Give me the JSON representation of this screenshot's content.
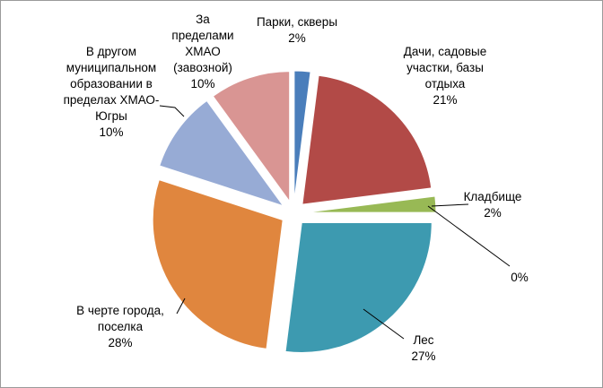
{
  "chart_data": {
    "type": "pie",
    "exploded": true,
    "series": [
      {
        "slices": [
          {
            "key": "parks",
            "label_lines": [
              "Парки, скверы"
            ],
            "value_label": "2%",
            "value": 2,
            "color": "#4a7ebb"
          },
          {
            "key": "dachas",
            "label_lines": [
              "Дачи, садовые",
              "участки, базы",
              "отдыха"
            ],
            "value_label": "21%",
            "value": 21,
            "color": "#b24a47"
          },
          {
            "key": "cemetery",
            "label_lines": [
              "Кладбище"
            ],
            "value_label": "2%",
            "value": 2,
            "color": "#98b955"
          },
          {
            "key": "zero",
            "label_lines": [],
            "value_label": "0%",
            "value": 0,
            "color": "#7e62a1"
          },
          {
            "key": "forest",
            "label_lines": [
              "Лес"
            ],
            "value_label": "27%",
            "value": 27,
            "color": "#3d9ab0"
          },
          {
            "key": "city",
            "label_lines": [
              "В черте города,",
              "поселка"
            ],
            "value_label": "28%",
            "value": 28,
            "color": "#e0863e"
          },
          {
            "key": "other_mo",
            "label_lines": [
              "В другом",
              "муниципальном",
              "образовании  в",
              "пределах ХМАО-",
              "Югры"
            ],
            "value_label": "10%",
            "value": 10,
            "color": "#97abd5"
          },
          {
            "key": "outside",
            "label_lines": [
              "За",
              "пределами",
              "ХМАО",
              "(завозной)"
            ],
            "value_label": "10%",
            "value": 10,
            "color": "#d99593"
          }
        ]
      }
    ]
  }
}
